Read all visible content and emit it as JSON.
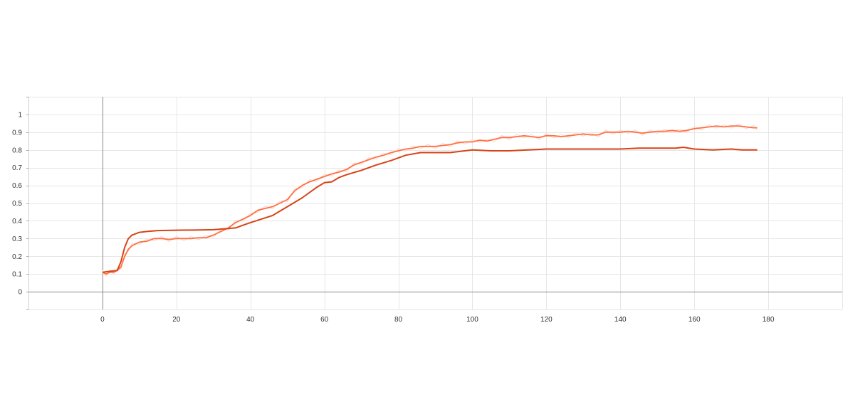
{
  "chart_data": {
    "type": "line",
    "title": "",
    "xlabel": "",
    "ylabel": "",
    "xlim": [
      -20,
      200
    ],
    "ylim": [
      -0.1,
      1.1
    ],
    "x_ticks": [
      "0",
      "20",
      "40",
      "60",
      "80",
      "100",
      "120",
      "140",
      "160",
      "180"
    ],
    "x_tick_values": [
      0,
      20,
      40,
      60,
      80,
      100,
      120,
      140,
      160,
      180
    ],
    "y_ticks": [
      "0",
      "0.1",
      "0.2",
      "0.3",
      "0.4",
      "0.5",
      "0.6",
      "0.7",
      "0.8",
      "0.9",
      "1"
    ],
    "y_tick_values": [
      0,
      0.1,
      0.2,
      0.3,
      0.4,
      0.5,
      0.6,
      0.7,
      0.8,
      0.9,
      1
    ],
    "grid": true,
    "legend": "none",
    "series": [
      {
        "color": "#FF7043",
        "raw_color": "#FDD9CF",
        "x": [
          0,
          1,
          2,
          3,
          4,
          5,
          6,
          7,
          8,
          10,
          12,
          14,
          16,
          18,
          20,
          22,
          24,
          26,
          28,
          30,
          32,
          34,
          36,
          38,
          40,
          42,
          44,
          46,
          48,
          50,
          52,
          54,
          56,
          58,
          60,
          62,
          64,
          66,
          68,
          70,
          72,
          74,
          76,
          78,
          80,
          82,
          84,
          86,
          88,
          90,
          92,
          94,
          96,
          98,
          100,
          102,
          104,
          106,
          108,
          110,
          112,
          114,
          116,
          118,
          120,
          122,
          124,
          126,
          128,
          130,
          132,
          134,
          136,
          138,
          140,
          142,
          144,
          146,
          148,
          150,
          152,
          154,
          156,
          158,
          160,
          162,
          164,
          166,
          168,
          170,
          172,
          174,
          176,
          177
        ],
        "values": [
          0.11,
          0.1,
          0.11,
          0.11,
          0.12,
          0.14,
          0.2,
          0.24,
          0.26,
          0.28,
          0.285,
          0.3,
          0.3,
          0.295,
          0.3,
          0.3,
          0.3,
          0.305,
          0.305,
          0.32,
          0.34,
          0.36,
          0.39,
          0.41,
          0.43,
          0.46,
          0.47,
          0.48,
          0.5,
          0.52,
          0.57,
          0.6,
          0.62,
          0.635,
          0.65,
          0.665,
          0.675,
          0.69,
          0.715,
          0.73,
          0.745,
          0.76,
          0.77,
          0.785,
          0.795,
          0.805,
          0.81,
          0.82,
          0.82,
          0.82,
          0.825,
          0.83,
          0.84,
          0.845,
          0.845,
          0.855,
          0.85,
          0.86,
          0.87,
          0.87,
          0.875,
          0.88,
          0.875,
          0.87,
          0.88,
          0.88,
          0.875,
          0.88,
          0.885,
          0.89,
          0.885,
          0.885,
          0.9,
          0.9,
          0.9,
          0.905,
          0.9,
          0.895,
          0.9,
          0.905,
          0.905,
          0.91,
          0.905,
          0.91,
          0.92,
          0.925,
          0.93,
          0.935,
          0.93,
          0.935,
          0.935,
          0.93,
          0.925,
          0.925
        ]
      },
      {
        "color": "#D84315",
        "x": [
          0,
          2,
          4,
          5,
          6,
          7,
          8,
          10,
          12,
          15,
          20,
          25,
          30,
          33,
          36,
          38,
          40,
          43,
          46,
          50,
          54,
          58,
          60,
          62,
          64,
          66,
          70,
          74,
          78,
          82,
          86,
          90,
          94,
          98,
          100,
          105,
          110,
          115,
          120,
          125,
          130,
          135,
          140,
          145,
          150,
          155,
          157,
          160,
          165,
          170,
          173,
          177
        ],
        "values": [
          0.11,
          0.115,
          0.12,
          0.17,
          0.25,
          0.3,
          0.32,
          0.335,
          0.34,
          0.345,
          0.347,
          0.348,
          0.35,
          0.355,
          0.36,
          0.375,
          0.39,
          0.41,
          0.43,
          0.48,
          0.53,
          0.59,
          0.615,
          0.62,
          0.645,
          0.66,
          0.685,
          0.715,
          0.74,
          0.77,
          0.785,
          0.785,
          0.785,
          0.795,
          0.8,
          0.795,
          0.795,
          0.8,
          0.805,
          0.805,
          0.805,
          0.805,
          0.805,
          0.81,
          0.81,
          0.81,
          0.815,
          0.805,
          0.8,
          0.805,
          0.8,
          0.8
        ]
      }
    ]
  }
}
